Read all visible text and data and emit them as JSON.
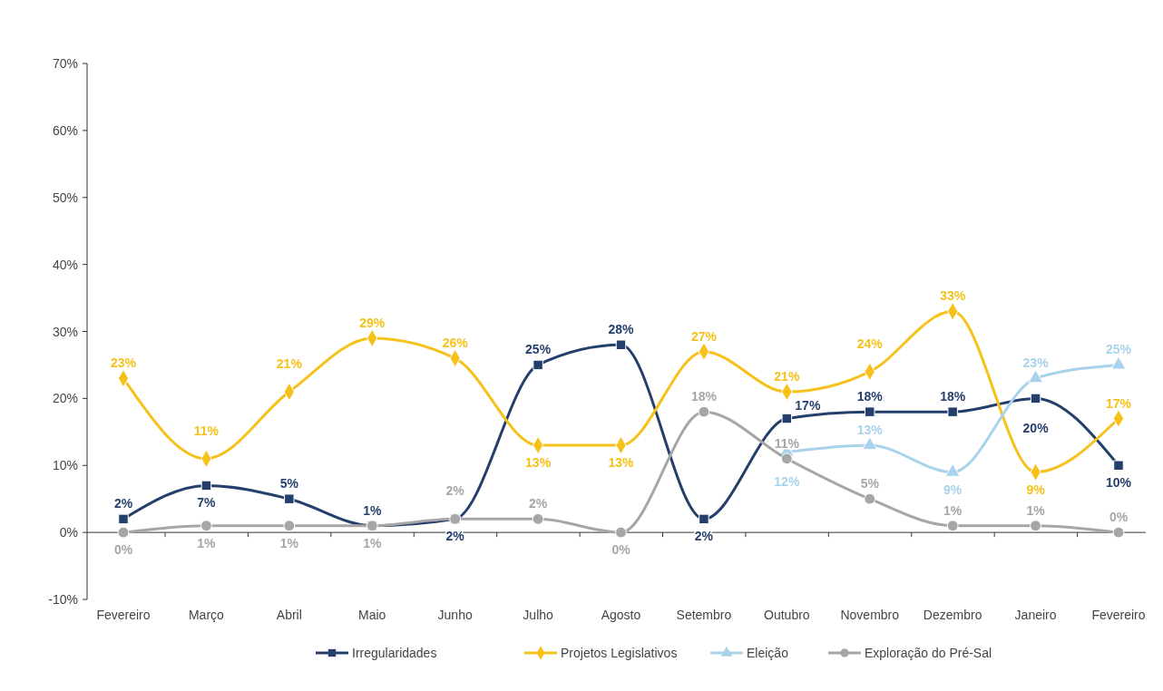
{
  "chart_data": {
    "type": "line",
    "categories": [
      "Fevereiro",
      "Março",
      "Abril",
      "Maio",
      "Junho",
      "Julho",
      "Agosto",
      "Setembro",
      "Outubro",
      "Novembro",
      "Dezembro",
      "Janeiro",
      "Fevereiro"
    ],
    "series": [
      {
        "name": "Irregularidades",
        "color": "#243f6b",
        "marker": "square",
        "values": [
          2,
          7,
          5,
          1,
          2,
          25,
          28,
          2,
          17,
          18,
          18,
          20,
          10
        ],
        "value_labels": [
          "2%",
          "7%",
          "5%",
          "1%",
          "2%",
          "25%",
          "28%",
          "2%",
          "17%",
          "18%",
          "18%",
          "20%",
          "10%"
        ]
      },
      {
        "name": "Projetos Legislativos",
        "color": "#f5c11a",
        "marker": "diamond",
        "values": [
          23,
          11,
          21,
          29,
          26,
          13,
          13,
          27,
          21,
          24,
          33,
          9,
          17
        ],
        "value_labels": [
          "23%",
          "11%",
          "21%",
          "29%",
          "26%",
          "13%",
          "13%",
          "27%",
          "21%",
          "24%",
          "33%",
          "9%",
          "17%"
        ]
      },
      {
        "name": "Eleição",
        "color": "#a9d3ea",
        "marker": "triangle",
        "values": [
          null,
          null,
          null,
          null,
          null,
          null,
          null,
          null,
          12,
          13,
          9,
          23,
          25
        ],
        "value_labels": [
          null,
          null,
          null,
          null,
          null,
          null,
          null,
          null,
          "12%",
          "13%",
          "9%",
          "23%",
          "25%"
        ]
      },
      {
        "name": "Exploração do Pré-Sal",
        "color": "#a6a6a6",
        "marker": "circle",
        "values": [
          0,
          1,
          1,
          1,
          2,
          2,
          0,
          18,
          11,
          5,
          1,
          1,
          0
        ],
        "value_labels": [
          "0%",
          "1%",
          "1%",
          "1%",
          "2%",
          "2%",
          "0%",
          "18%",
          "11%",
          "5%",
          "1%",
          "1%",
          "0%"
        ]
      }
    ],
    "ylim": [
      -10,
      70
    ],
    "yticks": [
      {
        "value": -10,
        "label": "-10%"
      },
      {
        "value": 0,
        "label": "0%"
      },
      {
        "value": 10,
        "label": "10%"
      },
      {
        "value": 20,
        "label": "20%"
      },
      {
        "value": 30,
        "label": "30%"
      },
      {
        "value": 40,
        "label": "40%"
      },
      {
        "value": 50,
        "label": "50%"
      },
      {
        "value": 60,
        "label": "60%"
      },
      {
        "value": 70,
        "label": "70%"
      }
    ],
    "legend": "bottom"
  }
}
